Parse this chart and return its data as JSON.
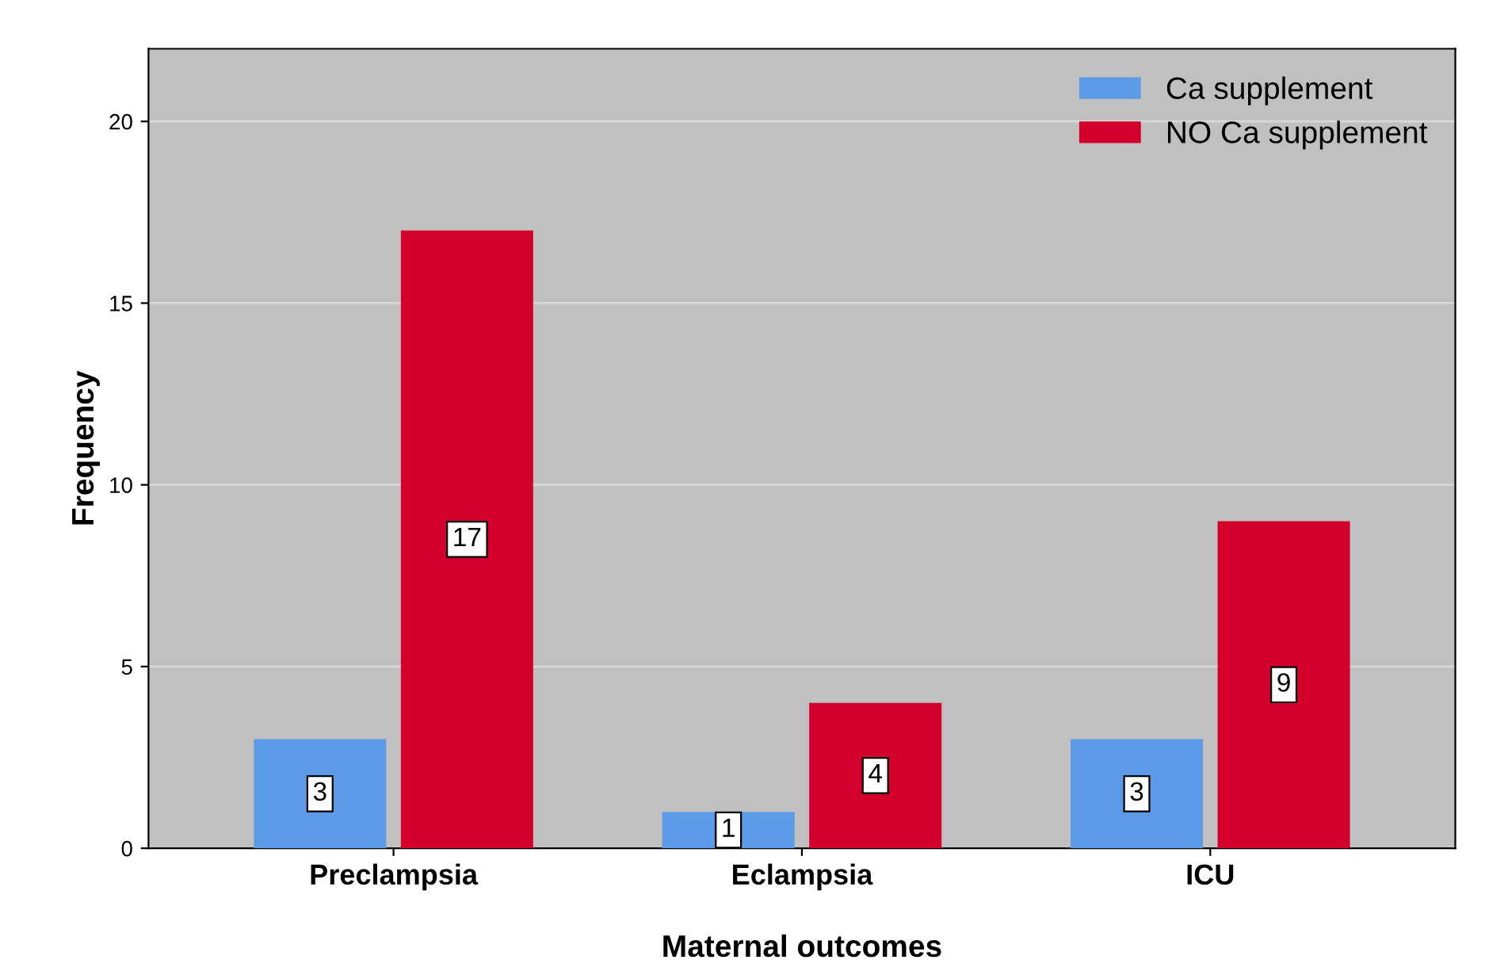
{
  "chart_data": {
    "type": "bar",
    "xlabel": "Maternal outcomes",
    "ylabel": "Frequency",
    "categories": [
      "Preclampsia",
      "Eclampsia",
      "ICU"
    ],
    "series": [
      {
        "name": "Ca supplement",
        "color": "#5b9be8",
        "values": [
          3,
          1,
          3
        ]
      },
      {
        "name": "NO Ca supplement",
        "color": "#d4002c",
        "values": [
          17,
          4,
          9
        ]
      }
    ],
    "ylim": [
      0,
      22
    ],
    "yticks": [
      0,
      5,
      10,
      15,
      20
    ],
    "grid": "y",
    "legend": "top right",
    "data_labels": true
  }
}
